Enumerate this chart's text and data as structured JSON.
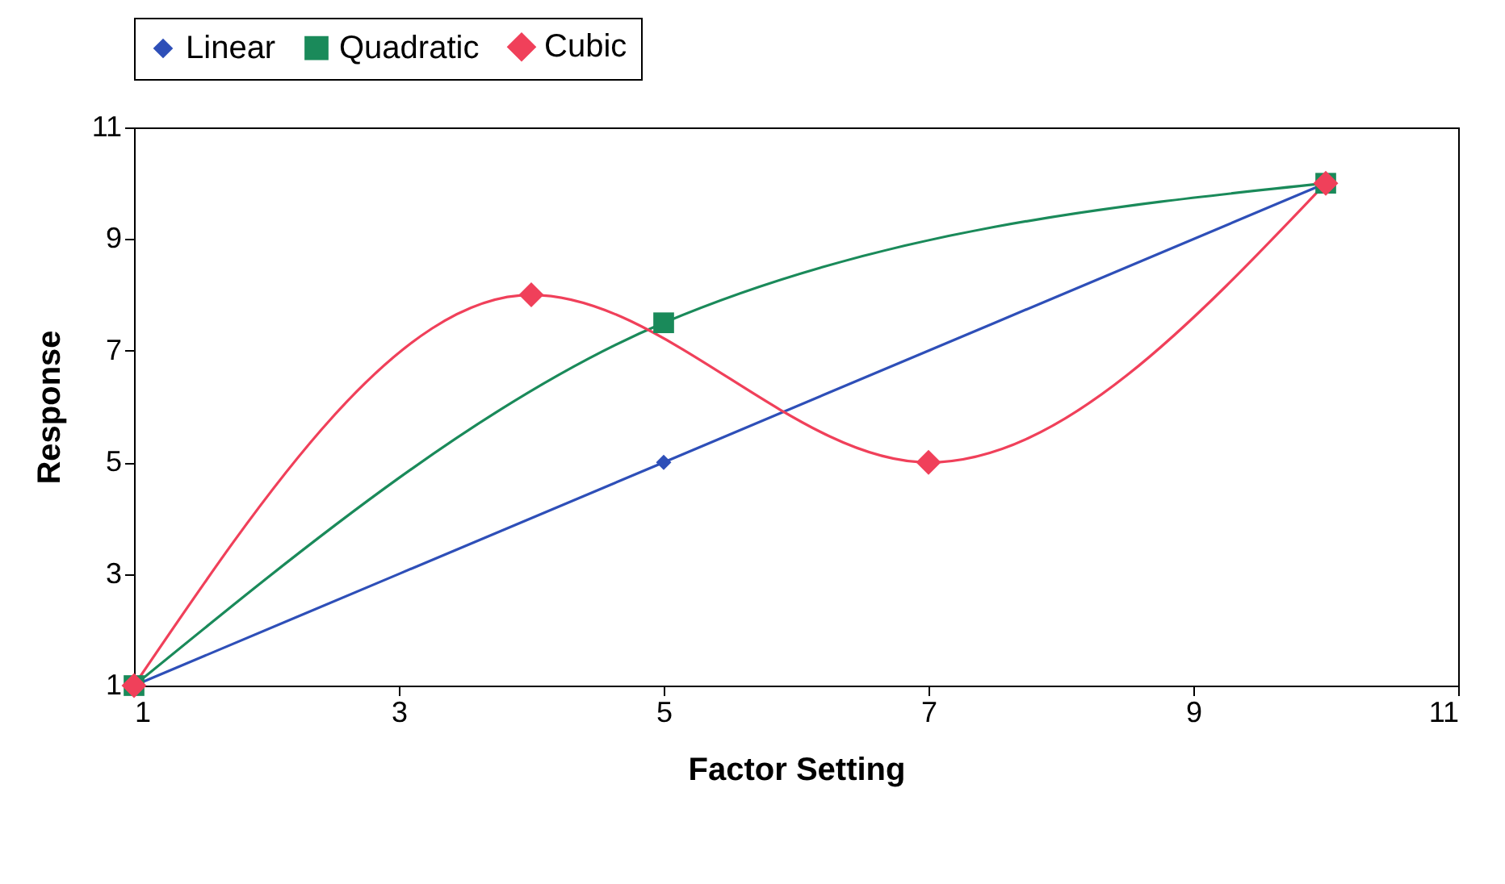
{
  "chart_data": {
    "type": "line",
    "xlabel": "Factor Setting",
    "ylabel": "Response",
    "xlim": [
      1,
      11
    ],
    "ylim": [
      1,
      11
    ],
    "xticks": [
      1,
      3,
      5,
      7,
      9,
      11
    ],
    "yticks": [
      1,
      3,
      5,
      7,
      9,
      11
    ],
    "grid": false,
    "legend": "top",
    "line_style": "solid",
    "series": [
      {
        "name": "Linear",
        "color": "#2e4fb8",
        "marker": "diamond",
        "x": [
          1,
          5,
          10
        ],
        "values": [
          1,
          5,
          10
        ]
      },
      {
        "name": "Quadratic",
        "color": "#1a8a5a",
        "marker": "square",
        "x": [
          1,
          5,
          10
        ],
        "values": [
          1,
          7.5,
          10
        ]
      },
      {
        "name": "Cubic",
        "color": "#f0405a",
        "marker": "diamond",
        "x": [
          1,
          4,
          7,
          10
        ],
        "values": [
          1,
          8,
          5,
          10
        ]
      }
    ]
  }
}
